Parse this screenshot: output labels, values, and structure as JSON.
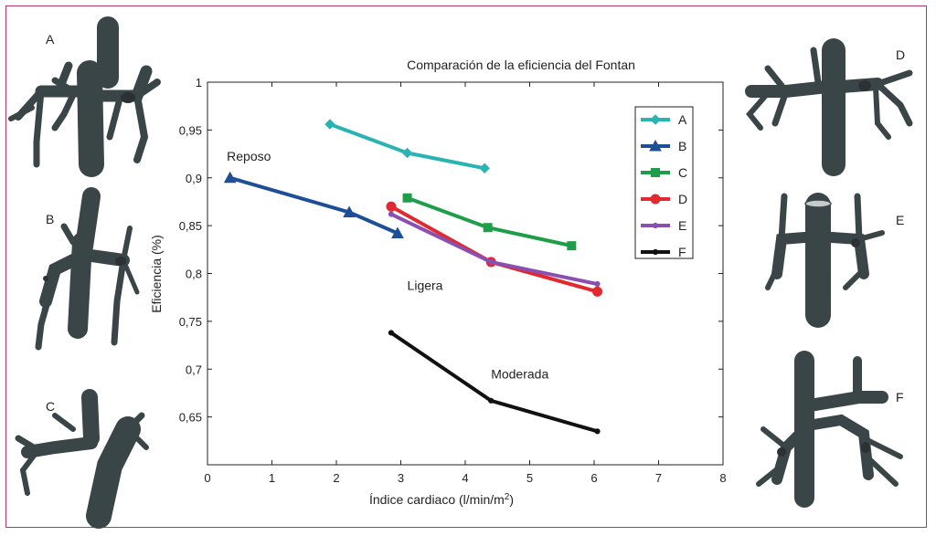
{
  "figure": {
    "panel_labels": [
      "A",
      "B",
      "C",
      "D",
      "E",
      "F"
    ],
    "vessel_color": "#d4dad8",
    "frame_color": "#b3395f"
  },
  "chart_data": {
    "type": "line",
    "title": "Comparación de la eficiencia del Fontan",
    "xlabel": "Índice cardiaco (l/min/m²)",
    "ylabel": "Eficiencia (%)",
    "xlim": [
      0,
      8
    ],
    "ylim": [
      0.6,
      1.0
    ],
    "xticks": [
      0,
      1,
      2,
      3,
      4,
      5,
      6,
      7,
      8
    ],
    "xtick_labels": [
      "0",
      "1",
      "2",
      "3",
      "4",
      "5",
      "6",
      "7",
      "8"
    ],
    "yticks": [
      0.65,
      0.7,
      0.75,
      0.8,
      0.85,
      0.9,
      0.95,
      1.0
    ],
    "ytick_labels": [
      "0,65",
      "0,7",
      "0,75",
      "0,8",
      "0,85",
      "0,9",
      "0,95",
      "1"
    ],
    "legend_position": "top-right",
    "grid": false,
    "annotations": [
      {
        "text": "Reposo",
        "x": 0.3,
        "y": 0.918
      },
      {
        "text": "Ligera",
        "x": 3.1,
        "y": 0.783
      },
      {
        "text": "Moderada",
        "x": 4.4,
        "y": 0.69
      }
    ],
    "series": [
      {
        "name": "A",
        "color": "#2ab3b3",
        "marker": "diamond",
        "x": [
          1.9,
          3.1,
          4.3
        ],
        "y": [
          0.956,
          0.926,
          0.91
        ]
      },
      {
        "name": "B",
        "color": "#1e4f96",
        "marker": "triangle",
        "x": [
          0.35,
          2.2,
          2.95
        ],
        "y": [
          0.9,
          0.864,
          0.842
        ]
      },
      {
        "name": "C",
        "color": "#1f9e4a",
        "marker": "square",
        "x": [
          3.1,
          4.35,
          5.65
        ],
        "y": [
          0.879,
          0.848,
          0.829
        ]
      },
      {
        "name": "D",
        "color": "#e02a2f",
        "marker": "circle",
        "x": [
          2.85,
          4.4,
          6.05
        ],
        "y": [
          0.87,
          0.812,
          0.781
        ]
      },
      {
        "name": "E",
        "color": "#8a4fb0",
        "marker": "dot",
        "x": [
          2.85,
          4.4,
          6.05
        ],
        "y": [
          0.862,
          0.812,
          0.789
        ]
      },
      {
        "name": "F",
        "color": "#111111",
        "marker": "dot",
        "x": [
          2.85,
          4.4,
          6.05
        ],
        "y": [
          0.738,
          0.667,
          0.635
        ]
      }
    ]
  }
}
